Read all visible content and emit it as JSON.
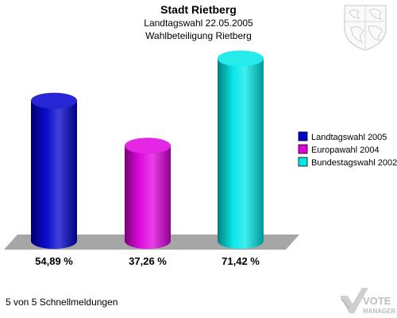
{
  "chart_data": {
    "type": "bar",
    "title": "Stadt Rietberg",
    "subtitle_1": "Landtagswahl 22.05.2005",
    "subtitle_2": "Wahlbeteiligung Rietberg",
    "categories": [
      "Landtagswahl 2005",
      "Europawahl 2004",
      "Bundestagswahl 2002"
    ],
    "values": [
      54.89,
      37.26,
      71.42
    ],
    "value_labels": [
      "54,89 %",
      "37,26 %",
      "71,42 %"
    ],
    "colors": [
      "#0000cc",
      "#e000e0",
      "#00e8e8"
    ],
    "legend": {
      "position": "right",
      "entries": [
        {
          "label": "Landtagswahl 2005",
          "color": "#0000cc"
        },
        {
          "label": "Europawahl 2004",
          "color": "#e000e0"
        },
        {
          "label": "Bundestagswahl 2002",
          "color": "#00e8e8"
        }
      ]
    },
    "ylim": [
      0,
      75
    ],
    "grid": false
  },
  "footer": {
    "status_text": "5 von 5 Schnellmeldungen",
    "logo_text_1": "VOTE",
    "logo_text_2": "MANAGER"
  },
  "crest_icon": "coat-of-arms-icon"
}
